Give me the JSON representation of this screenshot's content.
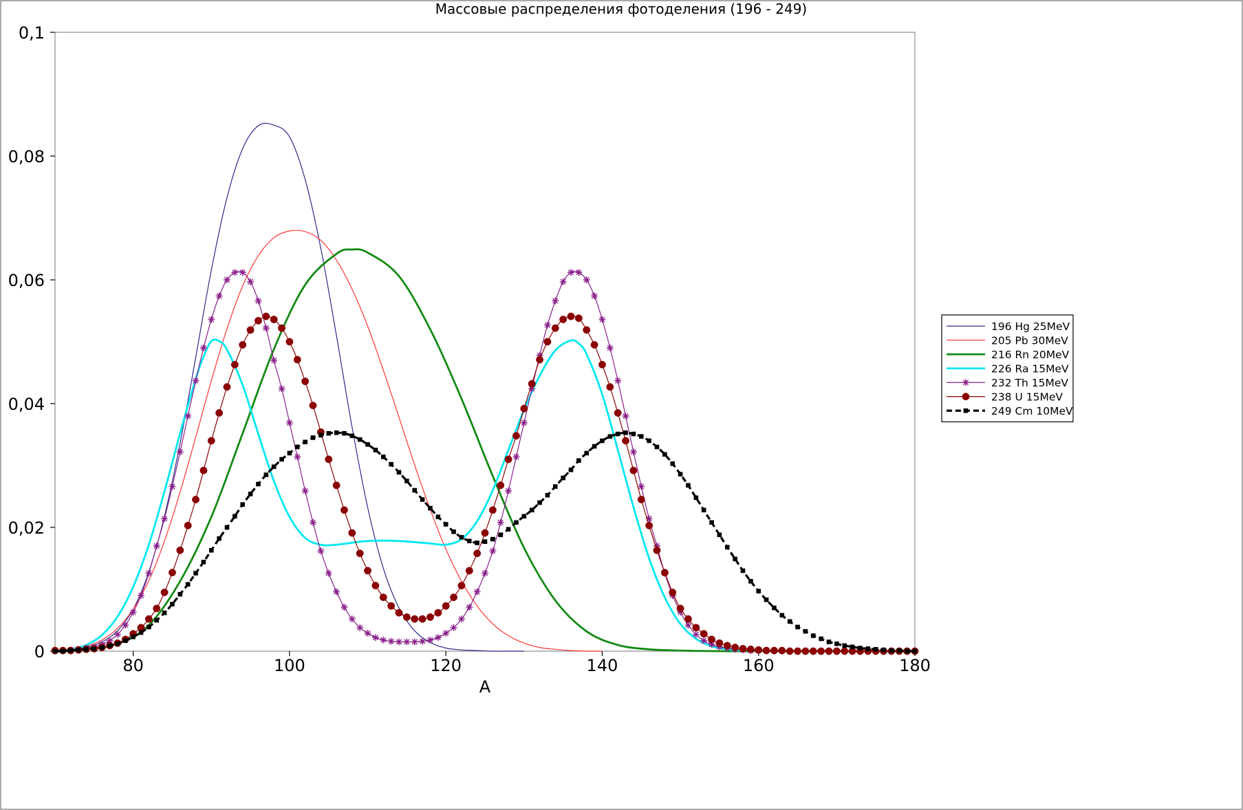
{
  "chart_data": {
    "type": "line",
    "title": "Массовые распределения фотоделения (196 - 249)",
    "xlabel": "A",
    "ylabel": "",
    "xlim": [
      70,
      180
    ],
    "ylim": [
      0,
      0.1
    ],
    "xticks": [
      80,
      100,
      120,
      140,
      160,
      180
    ],
    "xtick_labels": [
      "80",
      "100",
      "120",
      "140",
      "160",
      "180"
    ],
    "yticks": [
      0,
      0.02,
      0.04,
      0.06,
      0.08,
      0.1
    ],
    "ytick_labels": [
      "0",
      "0,02",
      "0,04",
      "0,06",
      "0,08",
      "0,1"
    ],
    "grid": false,
    "legend_position": "right",
    "series": [
      {
        "name": "196 Hg 25MeV",
        "color": "#2b2b8c",
        "line_width": 1.2,
        "dash": "",
        "marker": "none",
        "x": [
          70,
          72,
          74,
          76,
          78,
          80,
          82,
          84,
          86,
          88,
          90,
          92,
          94,
          96,
          98,
          100,
          102,
          104,
          106,
          108,
          110,
          112,
          114,
          116,
          118,
          120,
          122,
          124,
          126,
          128,
          130
        ],
        "y": [
          0,
          0.0002,
          0.0006,
          0.0015,
          0.0033,
          0.0068,
          0.0128,
          0.0218,
          0.0336,
          0.0475,
          0.0616,
          0.0733,
          0.0812,
          0.0849,
          0.085,
          0.0831,
          0.0762,
          0.0651,
          0.051,
          0.0362,
          0.0232,
          0.0134,
          0.007,
          0.0033,
          0.0014,
          0.0005,
          0.0002,
          0.0001,
          0,
          0,
          0
        ]
      },
      {
        "name": "205 Pb 30MeV",
        "color": "#ff3333",
        "line_width": 1.2,
        "dash": "",
        "marker": "none",
        "x": [
          70,
          72,
          74,
          76,
          78,
          80,
          82,
          84,
          86,
          88,
          90,
          92,
          94,
          96,
          98,
          100,
          102,
          104,
          106,
          108,
          110,
          112,
          114,
          116,
          118,
          120,
          122,
          124,
          126,
          128,
          130,
          132,
          134,
          136,
          138,
          140
        ],
        "y": [
          0,
          0.0003,
          0.0008,
          0.0018,
          0.0037,
          0.0068,
          0.0114,
          0.0178,
          0.0257,
          0.0346,
          0.0437,
          0.0521,
          0.059,
          0.0639,
          0.0668,
          0.0679,
          0.0678,
          0.0664,
          0.0632,
          0.0585,
          0.0525,
          0.0454,
          0.0378,
          0.0301,
          0.0229,
          0.0165,
          0.0113,
          0.0073,
          0.0044,
          0.0025,
          0.0013,
          0.0006,
          0.0003,
          0.0001,
          0,
          0
        ]
      },
      {
        "name": "216 Rn 20MeV",
        "color": "#138a13",
        "line_width": 2.8,
        "dash": "",
        "marker": "none",
        "x": [
          70,
          74,
          78,
          82,
          86,
          90,
          94,
          98,
          102,
          106,
          108,
          110,
          114,
          118,
          122,
          126,
          130,
          134,
          138,
          142,
          146,
          150,
          155,
          160,
          170,
          180
        ],
        "y": [
          0,
          0.0003,
          0.0012,
          0.0042,
          0.0113,
          0.0217,
          0.0352,
          0.0488,
          0.0592,
          0.0642,
          0.0649,
          0.0644,
          0.0606,
          0.052,
          0.0408,
          0.0283,
          0.0167,
          0.0082,
          0.0032,
          0.001,
          0.0003,
          0.0001,
          0,
          0,
          0,
          0
        ]
      },
      {
        "name": "226 Ra 15MeV",
        "color": "#00e8f0",
        "line_width": 2.8,
        "dash": "",
        "marker": "none",
        "x": [
          70,
          72,
          74,
          76,
          78,
          80,
          82,
          84,
          86,
          88,
          89,
          90,
          91,
          92,
          94,
          96,
          98,
          100,
          102,
          104,
          106,
          110,
          114,
          118,
          120,
          122,
          124,
          126,
          128,
          130,
          132,
          134,
          136,
          137,
          138,
          140,
          142,
          144,
          146,
          148,
          150,
          152,
          154,
          156,
          158
        ],
        "y": [
          0,
          0.0003,
          0.001,
          0.0026,
          0.0056,
          0.0104,
          0.0172,
          0.0258,
          0.0352,
          0.044,
          0.0476,
          0.0501,
          0.0501,
          0.0487,
          0.043,
          0.0351,
          0.0275,
          0.0217,
          0.0183,
          0.0172,
          0.0172,
          0.0178,
          0.0178,
          0.0174,
          0.0172,
          0.0181,
          0.021,
          0.026,
          0.0325,
          0.039,
          0.0445,
          0.0486,
          0.0502,
          0.0497,
          0.048,
          0.0415,
          0.0325,
          0.0233,
          0.015,
          0.0087,
          0.0044,
          0.002,
          0.0008,
          0.0003,
          0.0001
        ]
      },
      {
        "name": "232 Th 15MeV",
        "color": "#8a1f8a",
        "line_width": 1.2,
        "dash": "",
        "marker": "star",
        "x": [
          70,
          71,
          72,
          73,
          74,
          75,
          76,
          77,
          78,
          79,
          80,
          81,
          82,
          83,
          84,
          85,
          86,
          87,
          88,
          89,
          90,
          91,
          92,
          93,
          94,
          95,
          96,
          97,
          98,
          99,
          100,
          101,
          102,
          103,
          104,
          105,
          106,
          107,
          108,
          109,
          110,
          111,
          112,
          113,
          114,
          115,
          116,
          117,
          118,
          119,
          120,
          121,
          122,
          123,
          124,
          125,
          126,
          127,
          128,
          129,
          130,
          131,
          132,
          133,
          134,
          135,
          136,
          137,
          138,
          139,
          140,
          141,
          142,
          143,
          144,
          145,
          146,
          147,
          148,
          149,
          150,
          151,
          152,
          153,
          154,
          155,
          156,
          157,
          158,
          159,
          160
        ],
        "y": [
          0.0001,
          0.0001,
          0.0002,
          0.0003,
          0.0005,
          0.0007,
          0.0011,
          0.0017,
          0.0027,
          0.0042,
          0.0063,
          0.009,
          0.0126,
          0.017,
          0.0214,
          0.0266,
          0.0322,
          0.038,
          0.0437,
          0.049,
          0.0536,
          0.0574,
          0.06,
          0.0612,
          0.0612,
          0.0597,
          0.0566,
          0.0522,
          0.047,
          0.0424,
          0.0369,
          0.0314,
          0.0259,
          0.0208,
          0.0162,
          0.0126,
          0.0096,
          0.0071,
          0.0052,
          0.0038,
          0.0029,
          0.0022,
          0.0018,
          0.0016,
          0.0015,
          0.0015,
          0.0015,
          0.0016,
          0.0018,
          0.0022,
          0.0029,
          0.0038,
          0.0052,
          0.0071,
          0.0096,
          0.0126,
          0.0162,
          0.0208,
          0.0259,
          0.0314,
          0.0369,
          0.0424,
          0.0478,
          0.0527,
          0.0566,
          0.0597,
          0.0612,
          0.0612,
          0.06,
          0.0574,
          0.0536,
          0.049,
          0.0437,
          0.038,
          0.0322,
          0.0266,
          0.0214,
          0.017,
          0.0126,
          0.009,
          0.0063,
          0.0042,
          0.0027,
          0.0017,
          0.0011,
          0.0007,
          0.0005,
          0.0003,
          0.0002,
          0.0001,
          0.0001
        ]
      },
      {
        "name": "238 U 15MeV",
        "color": "#8b0000",
        "line_width": 1.2,
        "dash": "",
        "marker": "circle",
        "x": [
          70,
          71,
          72,
          73,
          74,
          75,
          76,
          77,
          78,
          79,
          80,
          81,
          82,
          83,
          84,
          85,
          86,
          87,
          88,
          89,
          90,
          91,
          92,
          93,
          94,
          95,
          96,
          97,
          98,
          99,
          100,
          101,
          102,
          103,
          104,
          105,
          106,
          107,
          108,
          109,
          110,
          111,
          112,
          113,
          114,
          115,
          116,
          117,
          118,
          119,
          120,
          121,
          122,
          123,
          124,
          125,
          126,
          127,
          128,
          129,
          130,
          131,
          132,
          133,
          134,
          135,
          136,
          137,
          138,
          139,
          140,
          141,
          142,
          143,
          144,
          145,
          146,
          147,
          148,
          149,
          150,
          151,
          152,
          153,
          154,
          155,
          156,
          157,
          158,
          159,
          160,
          161,
          162,
          163,
          164,
          165,
          166,
          167,
          168,
          169,
          170,
          171,
          172,
          173,
          174,
          175,
          176,
          177,
          178,
          179,
          180
        ],
        "y": [
          0.0001,
          0.0001,
          0.0001,
          0.0002,
          0.0003,
          0.0004,
          0.0006,
          0.0009,
          0.0013,
          0.0019,
          0.0028,
          0.0038,
          0.0052,
          0.0069,
          0.0095,
          0.0127,
          0.0163,
          0.0203,
          0.0245,
          0.0292,
          0.034,
          0.0385,
          0.0427,
          0.0463,
          0.0495,
          0.0519,
          0.0534,
          0.0541,
          0.0536,
          0.0522,
          0.05,
          0.0471,
          0.0436,
          0.0397,
          0.0354,
          0.031,
          0.0268,
          0.0228,
          0.0191,
          0.0158,
          0.013,
          0.0106,
          0.0087,
          0.0073,
          0.0062,
          0.0055,
          0.0052,
          0.0052,
          0.0055,
          0.0062,
          0.0073,
          0.0087,
          0.0106,
          0.013,
          0.0158,
          0.0191,
          0.0228,
          0.0268,
          0.031,
          0.0348,
          0.0392,
          0.0432,
          0.0471,
          0.05,
          0.0522,
          0.0536,
          0.0541,
          0.0538,
          0.0519,
          0.0495,
          0.0463,
          0.0427,
          0.0385,
          0.034,
          0.0292,
          0.0245,
          0.0203,
          0.0163,
          0.0127,
          0.0095,
          0.0069,
          0.0052,
          0.0038,
          0.0028,
          0.0019,
          0.0013,
          0.0009,
          0.0006,
          0.0004,
          0.0003,
          0.0002,
          0.0001,
          0.0001,
          0.0001,
          0,
          0,
          0,
          0,
          0,
          0,
          0,
          0,
          0,
          0,
          0,
          0,
          0,
          0,
          0,
          0,
          0
        ]
      },
      {
        "name": "249 Cm 10MeV",
        "color": "#000000",
        "line_width": 3.2,
        "dash": "8,5",
        "marker": "square",
        "x": [
          70,
          71,
          72,
          73,
          74,
          75,
          76,
          77,
          78,
          79,
          80,
          81,
          82,
          83,
          84,
          85,
          86,
          87,
          88,
          89,
          90,
          91,
          92,
          93,
          94,
          95,
          96,
          97,
          98,
          99,
          100,
          101,
          102,
          103,
          104,
          105,
          106,
          107,
          108,
          109,
          110,
          111,
          112,
          113,
          114,
          115,
          116,
          117,
          118,
          119,
          120,
          121,
          122,
          123,
          124,
          125,
          126,
          127,
          128,
          129,
          130,
          131,
          132,
          133,
          134,
          135,
          136,
          137,
          138,
          139,
          140,
          141,
          142,
          143,
          144,
          145,
          146,
          147,
          148,
          149,
          150,
          151,
          152,
          153,
          154,
          155,
          156,
          157,
          158,
          159,
          160,
          161,
          162,
          163,
          164,
          165,
          166,
          167,
          168,
          169,
          170,
          171,
          172,
          173,
          174,
          175,
          176,
          177,
          178,
          179,
          180
        ],
        "y": [
          0,
          0,
          0.0001,
          0.0002,
          0.0003,
          0.0004,
          0.0006,
          0.0009,
          0.0012,
          0.0017,
          0.0023,
          0.003,
          0.0039,
          0.005,
          0.0062,
          0.0076,
          0.0092,
          0.0108,
          0.0126,
          0.0144,
          0.0163,
          0.0182,
          0.02,
          0.0218,
          0.0237,
          0.0254,
          0.027,
          0.0285,
          0.0298,
          0.031,
          0.032,
          0.033,
          0.0338,
          0.0345,
          0.0349,
          0.0352,
          0.0353,
          0.0352,
          0.0348,
          0.0342,
          0.0334,
          0.0325,
          0.0314,
          0.0302,
          0.0289,
          0.0275,
          0.026,
          0.0245,
          0.0231,
          0.0217,
          0.0205,
          0.0193,
          0.0184,
          0.0178,
          0.0175,
          0.0177,
          0.0181,
          0.0188,
          0.0197,
          0.0208,
          0.0218,
          0.0228,
          0.024,
          0.0252,
          0.0266,
          0.028,
          0.0293,
          0.0308,
          0.032,
          0.0331,
          0.034,
          0.0347,
          0.0351,
          0.0353,
          0.0351,
          0.0347,
          0.034,
          0.033,
          0.0318,
          0.0303,
          0.0286,
          0.0268,
          0.0248,
          0.0228,
          0.0208,
          0.0188,
          0.0168,
          0.0149,
          0.013,
          0.0113,
          0.0097,
          0.0083,
          0.007,
          0.0058,
          0.0048,
          0.0039,
          0.0032,
          0.0025,
          0.002,
          0.0015,
          0.0012,
          0.0009,
          0.0007,
          0.0005,
          0.0004,
          0.0003,
          0.0002,
          0.0001,
          0.0001,
          0,
          0
        ]
      }
    ]
  }
}
